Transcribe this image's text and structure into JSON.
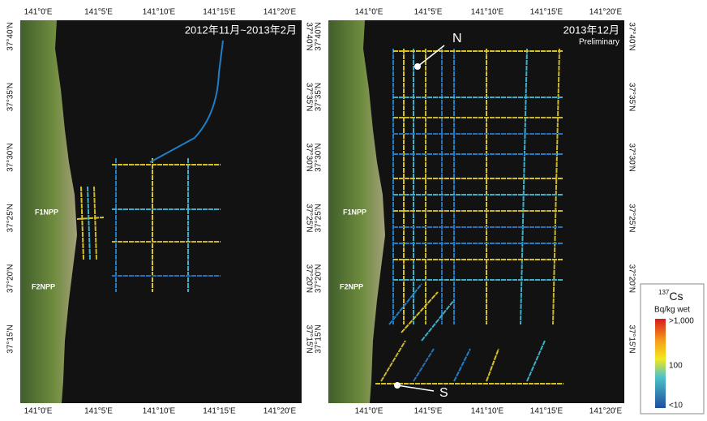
{
  "longitudes": [
    "141°0'E",
    "141°5'E",
    "141°10'E",
    "141°15'E",
    "141°20'E"
  ],
  "latitudes": [
    "37°40'N",
    "37°35'N",
    "37°30'N",
    "37°25'N",
    "37°20'N",
    "37°15'N"
  ],
  "panels": [
    {
      "title": "2012年11月~2013年2月",
      "sites": [
        "F1NPP",
        "F2NPP"
      ]
    },
    {
      "title": "2013年12月",
      "subtitle": "Preliminary",
      "sites": [
        "F1NPP",
        "F2NPP"
      ],
      "points": [
        "N",
        "S"
      ]
    }
  ],
  "legend": {
    "isotope": "137",
    "element": "Cs",
    "unit": "Bq/kg wet",
    "labels": [
      ">1,000",
      "100",
      "<10"
    ]
  }
}
